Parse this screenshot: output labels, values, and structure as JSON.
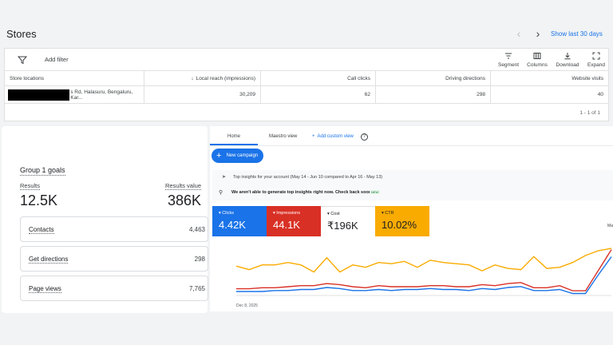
{
  "page": {
    "title": "Stores",
    "prev_icon": "chevron-left-icon",
    "next_icon": "chevron-right-icon",
    "range_link": "Show last 30 days"
  },
  "toolbar": {
    "add_filter": "Add filter",
    "segment": "Segment",
    "columns": "Columns",
    "download": "Download",
    "expand": "Expand"
  },
  "table": {
    "headers": [
      "Store locations",
      "Local reach (impressions)",
      "Call clicks",
      "Driving directions",
      "Website visits"
    ],
    "row": {
      "store": "s Rd, Halasuru, Bengaluru, Kar...",
      "reach": "30,209",
      "calls": "62",
      "directions": "298",
      "website": "40"
    },
    "pager": "1 - 1 of 1"
  },
  "goals": {
    "title": "Group 1 goals",
    "results_label": "Results",
    "results_value": "12.5K",
    "value_label": "Results value",
    "value_value": "386K",
    "items": [
      {
        "label": "Contacts",
        "value": "4,463"
      },
      {
        "label": "Get directions",
        "value": "298"
      },
      {
        "label": "Page views",
        "value": "7,765"
      }
    ]
  },
  "ads": {
    "tabs": [
      "Home",
      "Maestro view",
      "Add custom view"
    ],
    "new_campaign": "New campaign",
    "insights_title": "Top insights for your account (May 14 - Jun 10 compared to Apr 16 - May 13)",
    "insights_msg": "We aren't able to generate top insights right now. Check back soon.",
    "new_badge": "NEW",
    "kpis": [
      {
        "label": "Clicks",
        "value": "4.42K",
        "bg": "#1a73e8",
        "fg": "#ffffff"
      },
      {
        "label": "Impressions",
        "value": "44.1K",
        "bg": "#d93025",
        "fg": "#ffffff"
      },
      {
        "label": "Cost",
        "value": "₹196K",
        "bg": "#ffffff",
        "fg": "#202124"
      },
      {
        "label": "CTR",
        "value": "10.02%",
        "bg": "#f9ab00",
        "fg": "#202124"
      }
    ],
    "ma_text": "Ma",
    "colors": {
      "accent": "#1a73e8",
      "clicks": "#1a73e8",
      "impressions": "#d93025",
      "cost": "#3c4043",
      "ctr": "#f9ab00"
    }
  },
  "chart_data": {
    "type": "line",
    "x_label_first": "Dec 8, 2025",
    "series": [
      {
        "name": "CTR",
        "color": "#f9ab00",
        "values": [
          9.5,
          9.2,
          9.6,
          9.6,
          9.8,
          9.6,
          9.0,
          10.2,
          9.0,
          9.6,
          9.4,
          9.8,
          9.7,
          9.9,
          9.4,
          10.0,
          9.8,
          9.7,
          9.6,
          9.1,
          9.6,
          9.3,
          9.2,
          10.3,
          9.3,
          9.4,
          9.8,
          10.4,
          10.8,
          11.0
        ]
      },
      {
        "name": "Impressions",
        "color": "#d93025",
        "values": [
          1.2,
          1.2,
          1.3,
          1.3,
          1.4,
          1.5,
          1.5,
          1.7,
          1.6,
          1.4,
          1.3,
          1.5,
          1.4,
          1.4,
          1.4,
          1.5,
          1.5,
          1.4,
          1.4,
          1.6,
          1.5,
          1.7,
          1.8,
          1.3,
          1.3,
          1.5,
          1.0,
          1.0,
          3.0,
          5.0
        ]
      },
      {
        "name": "Clicks",
        "color": "#1a73e8",
        "values": [
          1.1,
          1.1,
          1.1,
          1.2,
          1.2,
          1.3,
          1.3,
          1.5,
          1.4,
          1.2,
          1.2,
          1.3,
          1.2,
          1.3,
          1.3,
          1.4,
          1.3,
          1.3,
          1.2,
          1.4,
          1.3,
          1.5,
          1.6,
          1.2,
          1.2,
          1.3,
          0.9,
          0.9,
          2.8,
          4.6
        ]
      }
    ]
  }
}
